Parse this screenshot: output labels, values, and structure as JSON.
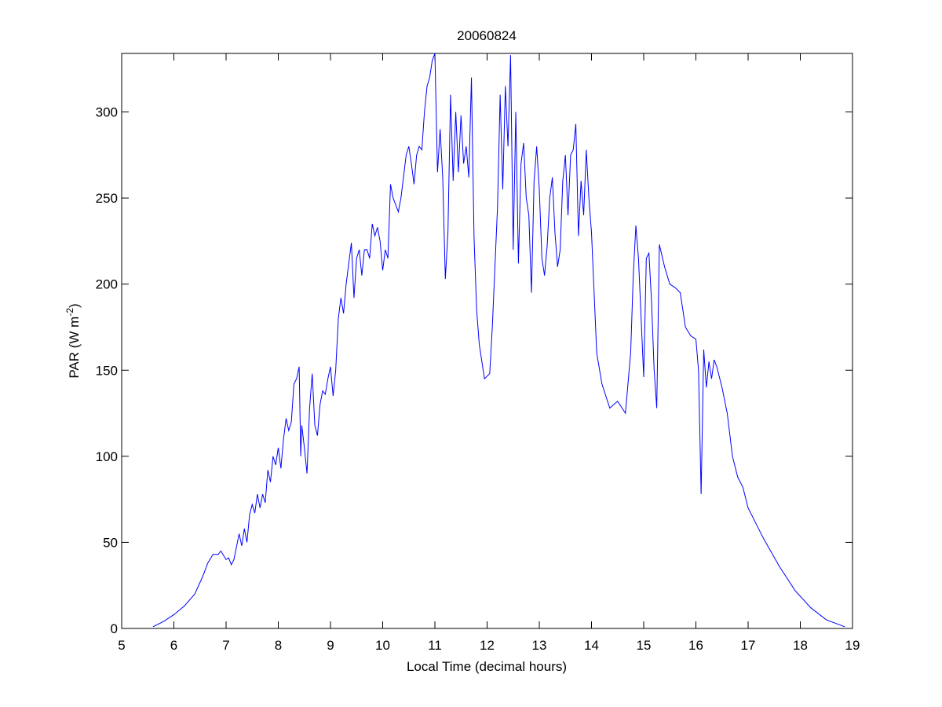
{
  "chart_data": {
    "type": "line",
    "title": "20060824",
    "xlabel": "Local Time (decimal hours)",
    "ylabel": [
      "PAR (W m",
      "-2",
      ")"
    ],
    "x": [
      5.6,
      5.8,
      6.0,
      6.2,
      6.4,
      6.55,
      6.65,
      6.75,
      6.85,
      6.9,
      7.0,
      7.05,
      7.1,
      7.15,
      7.25,
      7.3,
      7.35,
      7.4,
      7.45,
      7.5,
      7.55,
      7.6,
      7.65,
      7.7,
      7.75,
      7.8,
      7.85,
      7.9,
      7.95,
      8.0,
      8.05,
      8.1,
      8.15,
      8.2,
      8.25,
      8.3,
      8.35,
      8.4,
      8.43,
      8.45,
      8.5,
      8.55,
      8.6,
      8.65,
      8.7,
      8.75,
      8.8,
      8.85,
      8.9,
      8.95,
      9.0,
      9.05,
      9.1,
      9.15,
      9.2,
      9.25,
      9.3,
      9.35,
      9.4,
      9.45,
      9.5,
      9.55,
      9.6,
      9.65,
      9.7,
      9.75,
      9.8,
      9.85,
      9.9,
      9.95,
      10.0,
      10.05,
      10.1,
      10.15,
      10.2,
      10.3,
      10.35,
      10.45,
      10.5,
      10.55,
      10.6,
      10.65,
      10.7,
      10.75,
      10.8,
      10.85,
      10.9,
      10.95,
      11.0,
      11.05,
      11.1,
      11.15,
      11.2,
      11.25,
      11.3,
      11.35,
      11.4,
      11.45,
      11.5,
      11.55,
      11.6,
      11.65,
      11.7,
      11.75,
      11.8,
      11.85,
      11.95,
      12.05,
      12.1,
      12.2,
      12.25,
      12.3,
      12.35,
      12.4,
      12.45,
      12.5,
      12.55,
      12.6,
      12.65,
      12.7,
      12.75,
      12.8,
      12.85,
      12.9,
      12.95,
      13.0,
      13.05,
      13.1,
      13.15,
      13.2,
      13.25,
      13.3,
      13.35,
      13.4,
      13.45,
      13.5,
      13.55,
      13.6,
      13.65,
      13.7,
      13.75,
      13.8,
      13.85,
      13.9,
      13.95,
      14.0,
      14.1,
      14.2,
      14.35,
      14.5,
      14.65,
      14.75,
      14.8,
      14.85,
      14.9,
      15.0,
      15.05,
      15.1,
      15.15,
      15.2,
      15.25,
      15.3,
      15.4,
      15.5,
      15.6,
      15.7,
      15.8,
      15.9,
      16.0,
      16.05,
      16.1,
      16.15,
      16.2,
      16.25,
      16.3,
      16.35,
      16.4,
      16.5,
      16.6,
      16.7,
      16.8,
      16.9,
      17.0,
      17.3,
      17.6,
      17.9,
      18.2,
      18.5,
      18.85
    ],
    "series": [
      {
        "color": "#0000ff",
        "values": [
          1,
          4,
          8,
          13,
          20,
          30,
          38,
          43,
          43,
          45,
          40,
          41,
          37,
          40,
          55,
          48,
          58,
          50,
          66,
          72,
          67,
          78,
          70,
          78,
          73,
          92,
          85,
          100,
          95,
          105,
          93,
          110,
          122,
          115,
          120,
          142,
          145,
          152,
          100,
          118,
          105,
          90,
          128,
          148,
          118,
          112,
          130,
          138,
          136,
          145,
          152,
          135,
          150,
          180,
          192,
          183,
          200,
          212,
          224,
          192,
          215,
          220,
          205,
          220,
          220,
          215,
          235,
          228,
          233,
          225,
          208,
          220,
          215,
          258,
          250,
          242,
          250,
          275,
          280,
          270,
          258,
          275,
          280,
          278,
          300,
          315,
          320,
          330,
          334,
          265,
          290,
          262,
          203,
          230,
          310,
          260,
          300,
          265,
          298,
          270,
          280,
          262,
          320,
          227,
          185,
          165,
          145,
          148,
          175,
          245,
          310,
          255,
          315,
          280,
          333,
          220,
          300,
          212,
          270,
          282,
          250,
          240,
          195,
          260,
          280,
          255,
          215,
          205,
          222,
          250,
          262,
          230,
          210,
          220,
          260,
          275,
          240,
          275,
          278,
          293,
          228,
          260,
          240,
          278,
          250,
          230,
          160,
          142,
          128,
          132,
          125,
          160,
          205,
          234,
          215,
          146,
          215,
          218,
          190,
          150,
          128,
          223,
          210,
          200,
          198,
          195,
          175,
          170,
          168,
          150,
          78,
          162,
          140,
          155,
          145,
          156,
          152,
          140,
          125,
          100,
          88,
          82,
          70,
          52,
          36,
          22,
          12,
          5,
          1
        ]
      }
    ],
    "xlim": [
      5,
      19
    ],
    "xticks": [
      5,
      6,
      7,
      8,
      9,
      10,
      11,
      12,
      13,
      14,
      15,
      16,
      17,
      18,
      19
    ],
    "ylim": [
      0,
      334
    ],
    "yticks": [
      0,
      50,
      100,
      150,
      200,
      250,
      300
    ]
  }
}
